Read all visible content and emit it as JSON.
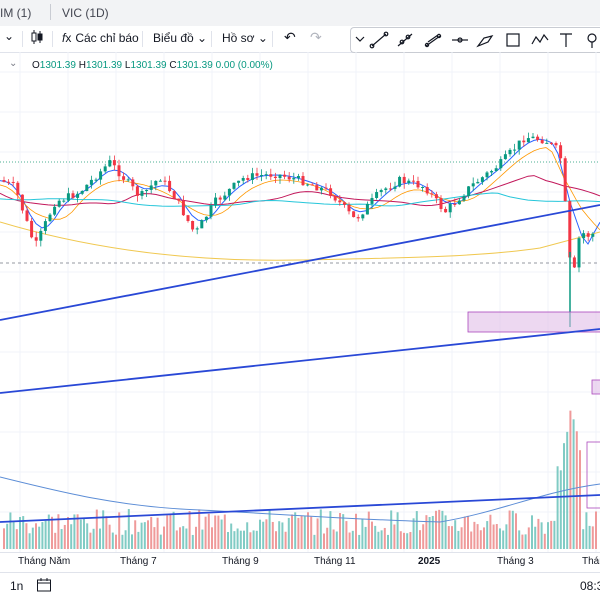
{
  "tabs": [
    {
      "label": "IM (1)"
    },
    {
      "label": "VIC (1D)"
    }
  ],
  "toolbar": {
    "indicators_label": "Các chỉ báo",
    "chart_label": "Biểu đồ",
    "profile_label": "Hồ sơ"
  },
  "legend": {
    "o_label": "O",
    "o_value": "1301.39",
    "h_label": "H",
    "h_value": "1301.39",
    "l_label": "L",
    "l_value": "1301.39",
    "c_label": "C",
    "c_value": "1301.39",
    "change": "0.00 (0.00%)"
  },
  "time_axis": [
    "Tháng Năm",
    "Tháng 7",
    "Tháng 9",
    "Tháng 11",
    "2025",
    "Tháng 3",
    "Thán"
  ],
  "bottom": {
    "interval": "1n",
    "time": "08:3"
  },
  "colors": {
    "up": "#089981",
    "down": "#f23645",
    "trendline": "#2948d6",
    "zone": "#e1bee7"
  }
}
